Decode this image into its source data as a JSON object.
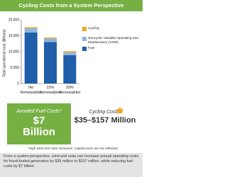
{
  "chart_data": {
    "type": "bar",
    "stacked": true,
    "title": "Cycling Costs from a System Perspective",
    "y_label": "Total operational cost, $M/year",
    "categories": [
      "No Renewables",
      "13% Renewables",
      "33% Renewables"
    ],
    "series": [
      {
        "name": "Fuel",
        "color": "#1f5ea8",
        "values": [
          16000,
          13000,
          8900
        ]
      },
      {
        "name": "Noncyclic Variable Operating and Maintenance (VOM)",
        "color": "#8fb4de",
        "values": [
          1400,
          1150,
          850
        ]
      },
      {
        "name": "Cycling",
        "color": "#f2a51f",
        "values": [
          300,
          300,
          400
        ]
      }
    ],
    "ylim": [
      0,
      20000
    ],
    "yticks": [
      0,
      {
        "value": 5000,
        "label": "5,000"
      },
      {
        "value": 10000,
        "label": "10,000"
      },
      {
        "value": 15000,
        "label": "15,000"
      },
      {
        "value": 20000,
        "label": "20,000"
      }
    ],
    "grid": false
  },
  "callouts": {
    "avoided_label": "Avoided Fuel Costs*",
    "avoided_value": "$7 Billion",
    "cycling_label": "Cycling Costs*",
    "cycling_value": "$35–$157 Million"
  },
  "footnote": "*High wind and solar scenarios. Capital costs are not reflected.",
  "summary": "From a system perspective, wind and solar can increase annual operating costs for fossil-fueled generators by $35 million to $157 million, while reducing fuel costs by $7 billion."
}
